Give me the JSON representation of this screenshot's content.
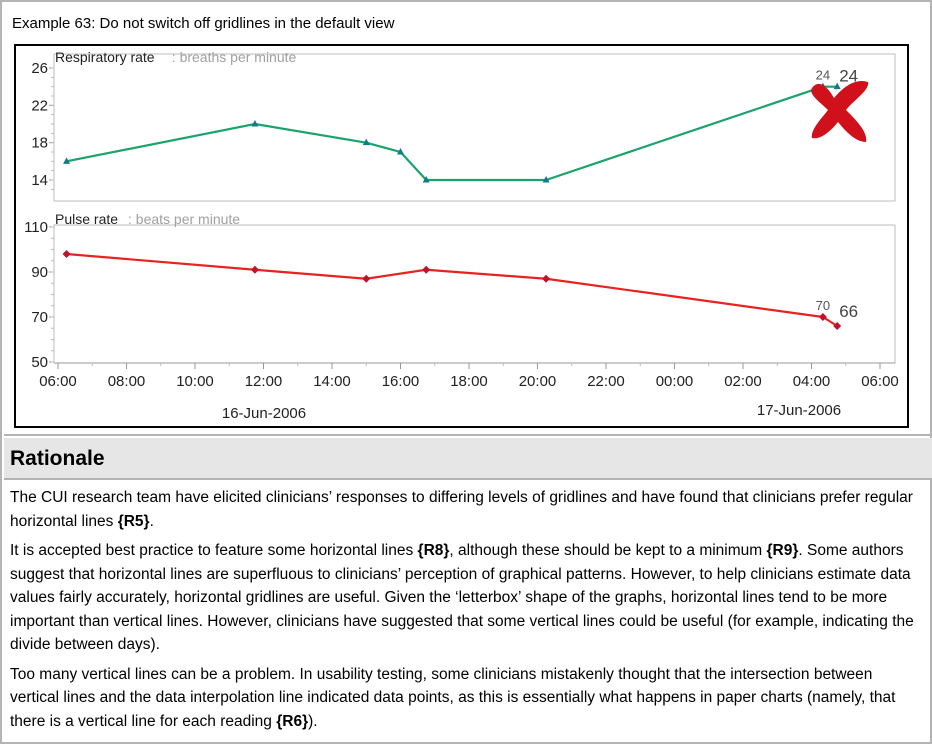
{
  "example_title": "Example 63: Do not switch off gridlines in the default view",
  "rationale": {
    "heading": "Rationale",
    "paragraphs": [
      [
        {
          "t": "The CUI research team have elicited clinicians’ responses to differing levels of gridlines and have found that clinicians prefer regular horizontal lines "
        },
        {
          "t": "{R5}",
          "b": true
        },
        {
          "t": "."
        }
      ],
      [
        {
          "t": "It is accepted best practice to feature some horizontal lines "
        },
        {
          "t": "{R8}",
          "b": true
        },
        {
          "t": ", although these should be kept to a minimum "
        },
        {
          "t": "{R9}",
          "b": true
        },
        {
          "t": ". Some authors suggest that horizontal lines are superfluous to clinicians’ perception of graphical patterns. However, to help clinicians estimate data values fairly accurately, horizontal gridlines are useful. Given the ‘letterbox’ shape of the graphs, horizontal lines tend to be more important than vertical lines. However, clinicians have suggested that some vertical lines could be useful (for example, indicating the divide between days)."
        }
      ],
      [
        {
          "t": "Too many vertical lines can be a problem. In usability testing, some clinicians mistakenly thought that the intersection between vertical lines and the data interpolation line indicated data points, as this is essentially what happens in paper charts (namely, that there is a vertical line for each reading "
        },
        {
          "t": "{R6}",
          "b": true
        },
        {
          "t": ")."
        }
      ]
    ]
  },
  "colors": {
    "resp_line": "#1aa36b",
    "resp_marker": "#137a8a",
    "pulse_line": "#e8221f",
    "pulse_marker": "#c0122a",
    "cross": "#d0101a"
  },
  "icons": {
    "indicator": "red-cross-icon"
  },
  "chart_data": [
    {
      "type": "line",
      "title": "Respiratory rate",
      "subtitle": ": breaths per minute",
      "ylim": [
        13,
        26
      ],
      "y_ticks": [
        "26",
        "22",
        "18",
        "14"
      ],
      "y_tick_values": [
        26,
        22,
        18,
        14
      ],
      "grid": false,
      "series": [
        {
          "x": [
            "2006-06-16 06:15",
            "2006-06-16 11:45",
            "2006-06-16 15:00",
            "2006-06-16 16:00",
            "2006-06-16 16:45",
            "2006-06-16 20:15",
            "2006-06-17 04:20",
            "2006-06-17 04:45"
          ],
          "values": [
            16,
            20,
            18,
            17,
            14,
            14,
            24,
            24
          ]
        }
      ],
      "data_labels": [
        "24",
        "24"
      ]
    },
    {
      "type": "line",
      "title": "Pulse rate",
      "subtitle": ": beats per minute",
      "ylim": [
        50,
        110
      ],
      "y_ticks": [
        "110",
        "90",
        "70",
        "50"
      ],
      "y_tick_values": [
        110,
        90,
        70,
        50
      ],
      "grid": false,
      "series": [
        {
          "x": [
            "2006-06-16 06:15",
            "2006-06-16 11:45",
            "2006-06-16 15:00",
            "2006-06-16 16:45",
            "2006-06-16 20:15",
            "2006-06-17 04:20",
            "2006-06-17 04:45"
          ],
          "values": [
            98,
            91,
            87,
            91,
            87,
            70,
            66
          ]
        }
      ],
      "data_labels": [
        "70",
        "66"
      ]
    }
  ],
  "x_axis": {
    "ticks": [
      "06:00",
      "08:00",
      "10:00",
      "12:00",
      "14:00",
      "16:00",
      "18:00",
      "20:00",
      "22:00",
      "00:00",
      "02:00",
      "04:00",
      "06:00"
    ],
    "dates": [
      "16-Jun-2006",
      "17-Jun-2006"
    ]
  }
}
